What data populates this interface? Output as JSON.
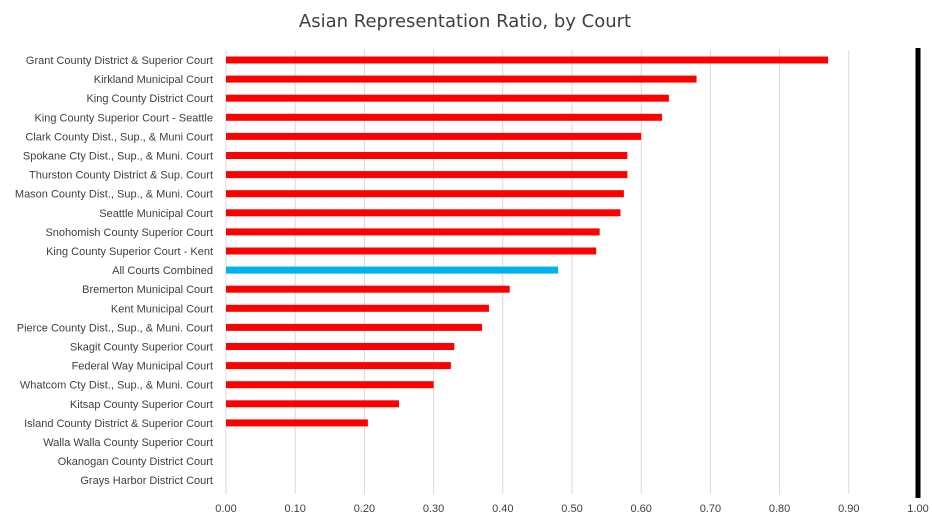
{
  "chart_data": {
    "type": "bar",
    "orientation": "horizontal",
    "title": "Asian Representation Ratio, by Court",
    "xlabel": "",
    "ylabel": "",
    "xlim": [
      0,
      1.0
    ],
    "x_ticks": [
      "0.00",
      "0.10",
      "0.20",
      "0.30",
      "0.40",
      "0.50",
      "0.60",
      "0.70",
      "0.80",
      "0.90",
      "1.00"
    ],
    "grid": true,
    "reference_line": {
      "value": 1.0,
      "color": "#000000"
    },
    "colors": {
      "bar": "#ff0000",
      "highlight": "#00b0f0",
      "grid": "#d9d9d9",
      "text": "#404040"
    },
    "categories": [
      "Grant County District & Superior Court",
      "Kirkland Municipal Court",
      "King County District Court",
      "King County Superior Court - Seattle",
      "Clark County Dist., Sup., & Muni Court",
      "Spokane Cty Dist., Sup., & Muni. Court",
      "Thurston County District & Sup. Court",
      "Mason County Dist., Sup., & Muni. Court",
      "Seattle Municipal Court",
      "Snohomish County Superior Court",
      "King County Superior Court - Kent",
      "All Courts Combined",
      "Bremerton Municipal Court",
      "Kent Municipal Court",
      "Pierce County Dist., Sup., & Muni. Court",
      "Skagit County Superior Court",
      "Federal Way Municipal Court",
      "Whatcom Cty Dist., Sup., & Muni. Court",
      "Kitsap County Superior Court",
      "Island County District & Superior Court",
      "Walla Walla County Superior Court",
      "Okanogan County District Court",
      "Grays Harbor District Court"
    ],
    "values": [
      0.87,
      0.68,
      0.64,
      0.63,
      0.6,
      0.58,
      0.58,
      0.575,
      0.57,
      0.54,
      0.535,
      0.48,
      0.41,
      0.38,
      0.37,
      0.33,
      0.325,
      0.3,
      0.25,
      0.205,
      0,
      0,
      0
    ],
    "highlight_category": "All Courts Combined"
  }
}
